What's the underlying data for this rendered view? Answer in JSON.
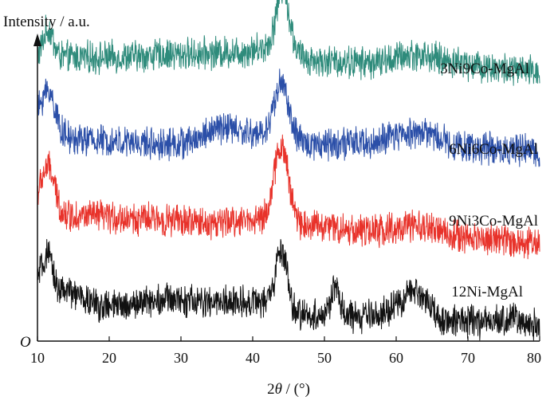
{
  "chart_data": {
    "type": "line",
    "ylabel": "Intensity / a.u.",
    "xlabel_prefix": "2",
    "xlabel_var": "θ",
    "xlabel_suffix": " / (°)",
    "origin_label": "O",
    "xlim": [
      10,
      80
    ],
    "x_ticks": [
      10,
      20,
      30,
      40,
      50,
      60,
      70,
      80
    ],
    "grid": false,
    "series": [
      {
        "name": "3Ni9Co-MgAl",
        "color": "#2e8b7b",
        "offset": 3.0,
        "baseline": [
          [
            10,
            0.38
          ],
          [
            20,
            0.38
          ],
          [
            30,
            0.42
          ],
          [
            38,
            0.45
          ],
          [
            42,
            0.5
          ],
          [
            50,
            0.33
          ],
          [
            60,
            0.3
          ],
          [
            65,
            0.33
          ],
          [
            80,
            0.2
          ]
        ],
        "peaks": [
          [
            11.5,
            0.35,
            0.7
          ],
          [
            44.2,
            0.75,
            0.9
          ],
          [
            62,
            0.1,
            2.5
          ]
        ]
      },
      {
        "name": "6Ni6Co-MgAl",
        "color": "#2b4fa8",
        "offset": 2.0,
        "baseline": [
          [
            10,
            0.55
          ],
          [
            15,
            0.35
          ],
          [
            25,
            0.3
          ],
          [
            30,
            0.3
          ],
          [
            36,
            0.5
          ],
          [
            40,
            0.42
          ],
          [
            48,
            0.3
          ],
          [
            56,
            0.3
          ],
          [
            63,
            0.45
          ],
          [
            70,
            0.25
          ],
          [
            80,
            0.2
          ]
        ],
        "peaks": [
          [
            11.5,
            0.45,
            1.0
          ],
          [
            44.0,
            0.7,
            1.0
          ]
        ]
      },
      {
        "name": "9Ni3Co-MgAl",
        "color": "#e8322a",
        "offset": 1.0,
        "baseline": [
          [
            10,
            0.55
          ],
          [
            14,
            0.4
          ],
          [
            25,
            0.35
          ],
          [
            35,
            0.3
          ],
          [
            40,
            0.35
          ],
          [
            48,
            0.28
          ],
          [
            56,
            0.2
          ],
          [
            63,
            0.25
          ],
          [
            70,
            0.12
          ],
          [
            80,
            0.05
          ]
        ],
        "peaks": [
          [
            11.5,
            0.5,
            0.9
          ],
          [
            44.0,
            0.95,
            1.0
          ]
        ]
      },
      {
        "name": "12Ni-MgAl",
        "color": "#111111",
        "offset": 0.0,
        "baseline": [
          [
            10,
            0.6
          ],
          [
            13,
            0.45
          ],
          [
            20,
            0.25
          ],
          [
            28,
            0.35
          ],
          [
            34,
            0.3
          ],
          [
            40,
            0.32
          ],
          [
            47,
            0.15
          ],
          [
            55,
            0.12
          ],
          [
            62,
            0.25
          ],
          [
            66,
            0.1
          ],
          [
            72,
            0.05
          ],
          [
            80,
            0.02
          ]
        ],
        "peaks": [
          [
            11.5,
            0.35,
            0.7
          ],
          [
            44.0,
            0.75,
            0.8
          ],
          [
            51.5,
            0.35,
            0.6
          ],
          [
            63.0,
            0.22,
            1.5
          ],
          [
            76.0,
            0.08,
            1.0
          ]
        ]
      }
    ]
  }
}
